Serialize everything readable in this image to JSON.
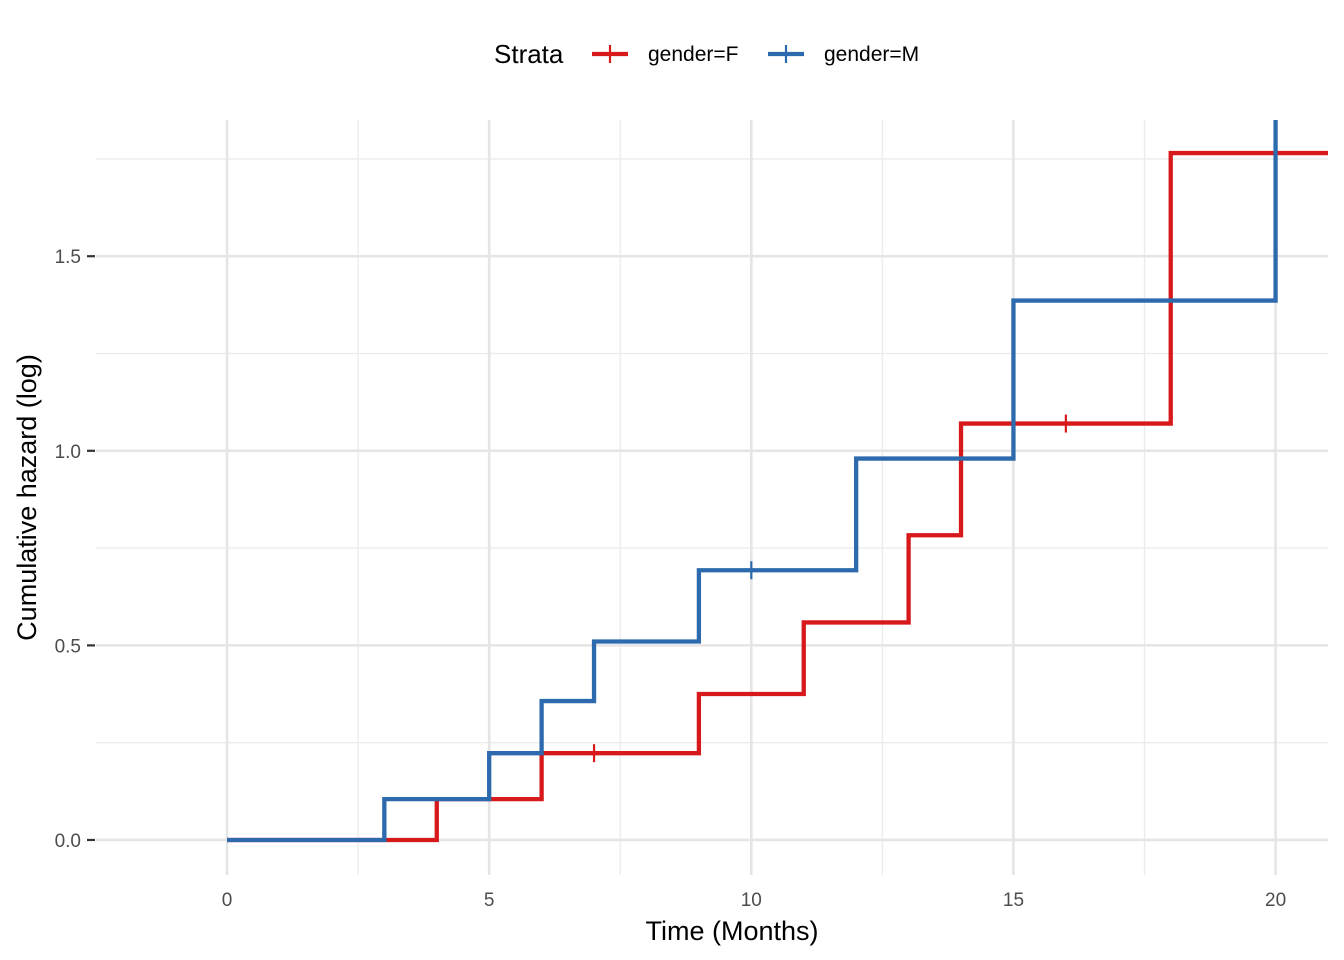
{
  "chart_data": {
    "type": "line",
    "subtype": "step",
    "xlabel": "Time (Months)",
    "ylabel": "Cumulative hazard (log)",
    "xlim": [
      -2.5,
      21
    ],
    "ylim": [
      -0.09,
      1.85
    ],
    "xticks": [
      0,
      5,
      10,
      15,
      20
    ],
    "xtick_labels": [
      "0",
      "5",
      "10",
      "15",
      "20"
    ],
    "yticks": [
      0.0,
      0.5,
      1.0,
      1.5
    ],
    "ytick_labels": [
      "0.0",
      "0.5",
      "1.0",
      "1.5"
    ],
    "grid": true,
    "legend": {
      "title": "Strata",
      "position": "top"
    },
    "series": [
      {
        "name": "gender=F",
        "color": "#d7191c",
        "x": [
          0,
          4,
          6,
          9,
          11,
          13,
          14,
          18,
          21
        ],
        "y": [
          0.0,
          0.105,
          0.223,
          0.375,
          0.559,
          0.783,
          1.07,
          1.765,
          1.765
        ],
        "censored": [
          {
            "x": 7,
            "y": 0.223
          },
          {
            "x": 16,
            "y": 1.07
          }
        ]
      },
      {
        "name": "gender=M",
        "color": "#2c6aad",
        "x": [
          0,
          3,
          5,
          6,
          7,
          9,
          12,
          15,
          20
        ],
        "y": [
          0.0,
          0.105,
          0.223,
          0.357,
          0.51,
          0.693,
          0.98,
          1.386,
          1.386
        ],
        "censored": [
          {
            "x": 10,
            "y": 0.693
          }
        ],
        "final_jump_to": 1.85
      }
    ]
  }
}
